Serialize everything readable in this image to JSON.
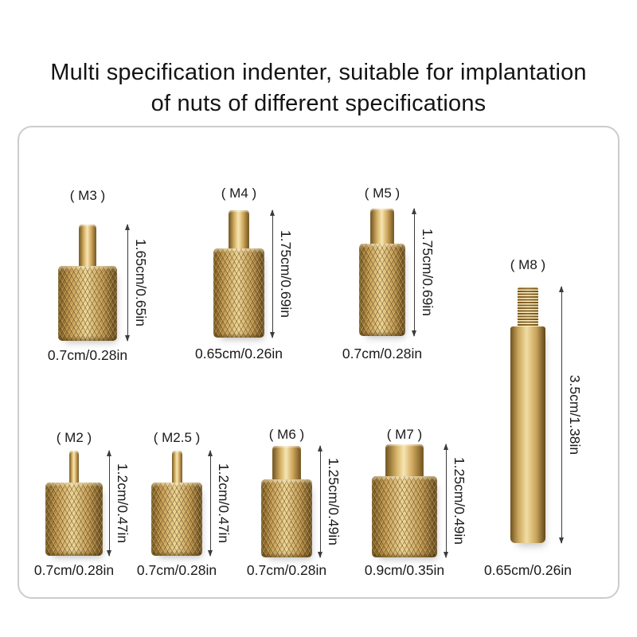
{
  "title": {
    "line1": "Multi specification indenter, suitable for implantation",
    "line2": "of nuts of different specifications"
  },
  "parts": [
    {
      "id": "m3",
      "label": "( M3 )",
      "height": "1.65cm/0.65in",
      "width": "0.7cm/0.28in"
    },
    {
      "id": "m4",
      "label": "( M4 )",
      "height": "1.75cm/0.69in",
      "width": "0.65cm/0.26in"
    },
    {
      "id": "m5",
      "label": "( M5 )",
      "height": "1.75cm/0.69in",
      "width": "0.7cm/0.28in"
    },
    {
      "id": "m8",
      "label": "( M8 )",
      "height": "3.5cm/1.38in",
      "width": "0.65cm/0.26in"
    },
    {
      "id": "m2",
      "label": "( M2 )",
      "height": "1.2cm/0.47in",
      "width": "0.7cm/0.28in"
    },
    {
      "id": "m2_5",
      "label": "( M2.5 )",
      "height": "1.2cm/0.47in",
      "width": "0.7cm/0.28in"
    },
    {
      "id": "m6",
      "label": "( M6 )",
      "height": "1.25cm/0.49in",
      "width": "0.7cm/0.28in"
    },
    {
      "id": "m7",
      "label": "( M7 )",
      "height": "1.25cm/0.49in",
      "width": "0.9cm/0.35in"
    }
  ],
  "colors": {
    "brass_light": "#f0d9a0",
    "brass_mid": "#c89d55",
    "brass_dark": "#6f521d",
    "dimension_line": "#3c3c3c",
    "frame_border": "#cccccc",
    "text": "#1a1a1a"
  }
}
